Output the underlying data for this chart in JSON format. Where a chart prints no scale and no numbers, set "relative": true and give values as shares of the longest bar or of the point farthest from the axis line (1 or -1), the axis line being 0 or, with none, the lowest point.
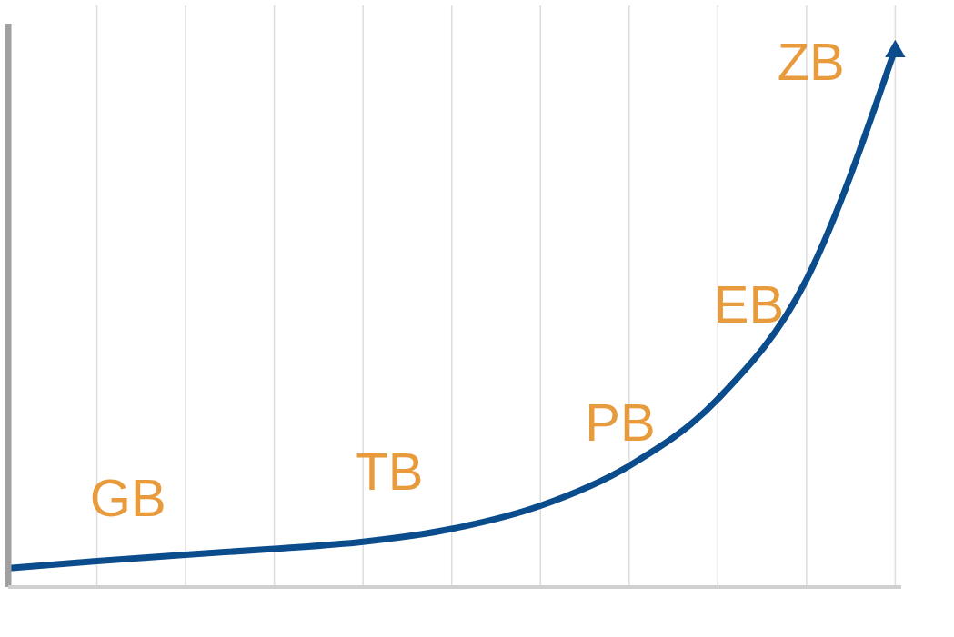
{
  "chart_data": {
    "type": "line",
    "relative": true,
    "categories": [
      null,
      null,
      null,
      null,
      null,
      null,
      null,
      null,
      null,
      null,
      null
    ],
    "series": [
      {
        "color": "#0b4c8c",
        "values": [
          0.035,
          0.048,
          0.06,
          0.071,
          0.084,
          0.108,
          0.151,
          0.225,
          0.349,
          0.571,
          1
        ]
      }
    ],
    "annotations": [
      "GB",
      "TB",
      "PB",
      "EB",
      "ZB"
    ],
    "grid": "x",
    "marker": "none",
    "line_style": "solid"
  }
}
